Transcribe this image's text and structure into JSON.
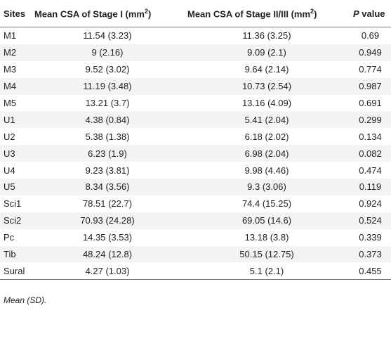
{
  "table": {
    "header": [
      {
        "text": "Sites"
      },
      {
        "text": "Mean CSA of Stage I (mm",
        "sup": "2",
        "tail": ")"
      },
      {
        "text": "Mean CSA of Stage II/III (mm",
        "sup": "2",
        "tail": ")"
      },
      {
        "italic": "P",
        "text": " value"
      }
    ],
    "rows": [
      [
        "M1",
        "11.54 (3.23)",
        "11.36 (3.25)",
        "0.69"
      ],
      [
        "M2",
        "9 (2.16)",
        "9.09 (2.1)",
        "0.949"
      ],
      [
        "M3",
        "9.52 (3.02)",
        "9.64 (2.14)",
        "0.774"
      ],
      [
        "M4",
        "11.19 (3.48)",
        "10.73 (2.54)",
        "0.987"
      ],
      [
        "M5",
        "13.21 (3.7)",
        "13.16 (4.09)",
        "0.691"
      ],
      [
        "U1",
        "4.38 (0.84)",
        "5.41 (2.04)",
        "0.299"
      ],
      [
        "U2",
        "5.38 (1.38)",
        "6.18 (2.02)",
        "0.134"
      ],
      [
        "U3",
        "6.23 (1.9)",
        "6.98 (2.04)",
        "0.082"
      ],
      [
        "U4",
        "9.23 (3.81)",
        "9.98 (4.46)",
        "0.474"
      ],
      [
        "U5",
        "8.34 (3.56)",
        "9.3 (3.06)",
        "0.119"
      ],
      [
        "Sci1",
        "78.51 (22.7)",
        "74.4 (15.25)",
        "0.924"
      ],
      [
        "Sci2",
        "70.93 (24.28)",
        "69.05 (14.6)",
        "0.524"
      ],
      [
        "Pc",
        "14.35 (3.53)",
        "13.18 (3.8)",
        "0.339"
      ],
      [
        "Tib",
        "48.24 (12.8)",
        "50.15 (12.75)",
        "0.373"
      ],
      [
        "Sural",
        "4.27 (1.03)",
        "5.1 (2.1)",
        "0.455"
      ]
    ],
    "footnote": "Mean (SD)."
  }
}
